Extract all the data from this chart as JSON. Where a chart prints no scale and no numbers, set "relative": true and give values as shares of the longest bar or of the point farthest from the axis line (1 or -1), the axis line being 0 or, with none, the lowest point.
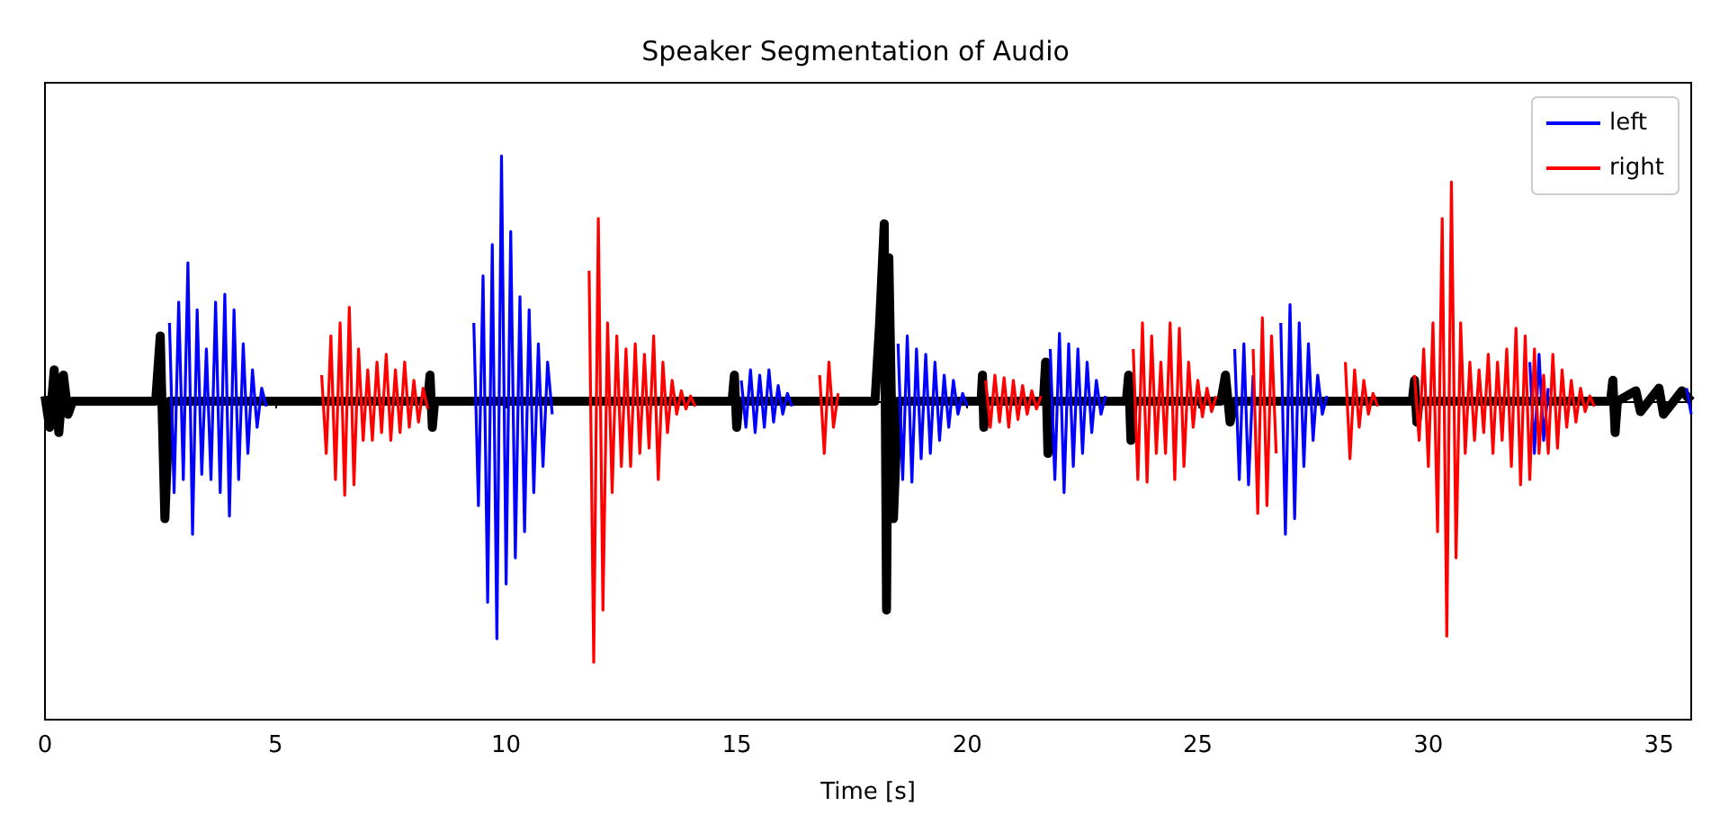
{
  "chart_data": {
    "type": "line",
    "title": "Speaker Segmentation of Audio",
    "xlabel": "Time [s]",
    "relative": true,
    "xlim": [
      0,
      35.7
    ],
    "xticks": [
      0,
      5,
      10,
      15,
      20,
      25,
      30,
      35
    ],
    "grid": false,
    "legend": "top right",
    "marker": "none",
    "line_style": "solid",
    "series": [
      {
        "color": "#000000",
        "x": [
          0,
          0.1,
          0.2,
          0.3,
          0.4,
          0.5,
          0.6,
          2.4,
          2.5,
          2.6,
          2.7,
          8.3,
          8.35,
          8.4,
          8.45,
          14.9,
          14.95,
          15.0,
          15.05,
          18.0,
          18.1,
          18.2,
          18.25,
          18.3,
          18.4,
          18.5,
          20.3,
          20.33,
          20.36,
          20.4,
          21.65,
          21.7,
          21.75,
          21.8,
          23.45,
          23.5,
          23.55,
          23.6,
          25.5,
          25.6,
          25.7,
          25.8,
          29.65,
          29.7,
          29.75,
          29.8,
          33.95,
          34.0,
          34.05,
          34.1,
          34.5,
          34.6,
          35.0,
          35.1,
          35.5,
          35.7
        ],
        "values": [
          0.02,
          -0.1,
          0.12,
          -0.12,
          0.1,
          -0.05,
          0,
          0,
          0.25,
          -0.45,
          0,
          0,
          0.1,
          -0.1,
          0,
          0,
          0.1,
          -0.1,
          0,
          0,
          0.3,
          0.68,
          -0.8,
          0.55,
          -0.45,
          0,
          0,
          0.1,
          -0.1,
          0,
          0,
          0.15,
          -0.2,
          0,
          0,
          0.1,
          -0.15,
          0,
          0,
          0.1,
          -0.08,
          0,
          0,
          0.08,
          -0.08,
          0,
          0,
          0.08,
          -0.12,
          0,
          0.04,
          -0.04,
          0.05,
          -0.05,
          0.04,
          0
        ]
      },
      {
        "name": "left",
        "color": "#0000ff",
        "x": [
          2.7,
          2.8,
          2.9,
          3.0,
          3.1,
          3.2,
          3.3,
          3.4,
          3.5,
          3.6,
          3.7,
          3.8,
          3.9,
          4.0,
          4.1,
          4.2,
          4.3,
          4.4,
          4.5,
          4.6,
          4.7,
          4.8,
          4.9,
          9.3,
          9.4,
          9.5,
          9.6,
          9.7,
          9.8,
          9.9,
          10.0,
          10.1,
          10.2,
          10.3,
          10.4,
          10.5,
          10.6,
          10.7,
          10.8,
          10.9,
          11.0,
          11.1,
          15.1,
          15.2,
          15.3,
          15.4,
          15.5,
          15.6,
          15.7,
          15.8,
          15.9,
          16.0,
          16.1,
          16.2,
          16.3,
          18.5,
          18.6,
          18.7,
          18.8,
          18.9,
          19.0,
          19.1,
          19.2,
          19.3,
          19.4,
          19.5,
          19.6,
          19.7,
          19.8,
          19.9,
          20.0,
          20.1,
          21.8,
          21.9,
          22.0,
          22.1,
          22.2,
          22.3,
          22.4,
          22.5,
          22.6,
          22.7,
          22.8,
          22.9,
          23.0,
          23.1,
          25.8,
          25.9,
          26.0,
          26.1,
          26.2,
          26.3,
          26.8,
          26.9,
          27.0,
          27.1,
          27.2,
          27.3,
          27.4,
          27.5,
          27.6,
          27.7,
          27.8,
          27.9,
          32.2,
          32.3,
          32.4,
          32.5,
          32.6,
          32.7,
          35.6,
          35.7
        ],
        "values": [
          0.3,
          -0.35,
          0.38,
          -0.3,
          0.53,
          -0.51,
          0.35,
          -0.28,
          0.2,
          -0.3,
          0.38,
          -0.35,
          0.41,
          -0.44,
          0.35,
          -0.3,
          0.22,
          -0.2,
          0.12,
          -0.1,
          0.05,
          -0.02,
          null,
          0.3,
          -0.4,
          0.48,
          -0.77,
          0.6,
          -0.91,
          0.94,
          -0.7,
          0.65,
          -0.6,
          0.4,
          -0.5,
          0.35,
          -0.35,
          0.22,
          -0.25,
          0.15,
          -0.05,
          null,
          0.08,
          -0.1,
          0.12,
          -0.12,
          0.1,
          -0.1,
          0.12,
          -0.08,
          0.06,
          -0.05,
          0.03,
          -0.02,
          null,
          0.22,
          -0.3,
          0.25,
          -0.31,
          0.2,
          -0.22,
          0.18,
          -0.2,
          0.15,
          -0.15,
          0.1,
          -0.1,
          0.08,
          -0.05,
          0.03,
          -0.02,
          null,
          0.2,
          -0.3,
          0.26,
          -0.35,
          0.22,
          -0.25,
          0.2,
          -0.2,
          0.15,
          -0.12,
          0.08,
          -0.05,
          0.02,
          null,
          0.2,
          -0.3,
          0.22,
          -0.32,
          0.1,
          null,
          0.3,
          -0.51,
          0.37,
          -0.45,
          0.3,
          -0.25,
          0.22,
          -0.15,
          0.1,
          -0.05,
          0.02,
          null,
          0.15,
          -0.2,
          0.18,
          -0.15,
          0.05,
          null,
          0.05,
          -0.05
        ]
      },
      {
        "name": "right",
        "color": "#ff0000",
        "x": [
          6.0,
          6.1,
          6.2,
          6.3,
          6.4,
          6.5,
          6.6,
          6.7,
          6.8,
          6.9,
          7.0,
          7.1,
          7.2,
          7.3,
          7.4,
          7.5,
          7.6,
          7.7,
          7.8,
          7.9,
          8.0,
          8.1,
          8.2,
          8.3,
          8.4,
          11.8,
          11.9,
          12.0,
          12.1,
          12.2,
          12.3,
          12.4,
          12.5,
          12.6,
          12.7,
          12.8,
          12.9,
          13.0,
          13.1,
          13.2,
          13.3,
          13.4,
          13.5,
          13.6,
          13.7,
          13.8,
          13.9,
          14.0,
          14.1,
          14.2,
          16.8,
          16.9,
          17.0,
          17.1,
          17.2,
          17.3,
          20.4,
          20.5,
          20.6,
          20.7,
          20.8,
          20.9,
          21.0,
          21.1,
          21.2,
          21.3,
          21.4,
          21.5,
          21.6,
          21.7,
          23.6,
          23.7,
          23.8,
          23.9,
          24.0,
          24.1,
          24.2,
          24.3,
          24.4,
          24.5,
          24.6,
          24.7,
          24.8,
          24.9,
          25.0,
          25.1,
          25.2,
          25.3,
          25.4,
          25.5,
          26.2,
          26.3,
          26.4,
          26.5,
          26.6,
          26.7,
          26.75,
          28.2,
          28.3,
          28.4,
          28.5,
          28.6,
          28.7,
          28.8,
          28.9,
          29.0,
          29.7,
          29.8,
          29.9,
          30.0,
          30.1,
          30.2,
          30.3,
          30.4,
          30.5,
          30.6,
          30.7,
          30.8,
          30.9,
          31.0,
          31.1,
          31.2,
          31.3,
          31.4,
          31.5,
          31.6,
          31.7,
          31.8,
          31.9,
          32.0,
          32.1,
          32.2,
          32.3,
          32.4,
          32.5,
          32.6,
          32.7,
          32.8,
          32.9,
          33.0,
          33.1,
          33.2,
          33.3,
          33.4,
          33.5,
          33.6
        ],
        "values": [
          0.1,
          -0.2,
          0.25,
          -0.3,
          0.3,
          -0.36,
          0.36,
          -0.32,
          0.2,
          -0.15,
          0.12,
          -0.15,
          0.15,
          -0.12,
          0.18,
          -0.15,
          0.12,
          -0.12,
          0.15,
          -0.1,
          0.08,
          -0.08,
          0.05,
          -0.03,
          null,
          0.5,
          -1.0,
          0.7,
          -0.8,
          0.3,
          -0.35,
          0.25,
          -0.25,
          0.2,
          -0.25,
          0.22,
          -0.2,
          0.18,
          -0.18,
          0.25,
          -0.3,
          0.15,
          -0.12,
          0.08,
          -0.05,
          0.04,
          -0.03,
          0.02,
          -0.02,
          null,
          0.1,
          -0.2,
          0.15,
          -0.1,
          0.03,
          null,
          0.08,
          -0.1,
          0.1,
          -0.08,
          0.09,
          -0.1,
          0.08,
          -0.07,
          0.06,
          -0.05,
          0.04,
          -0.03,
          0.02,
          null,
          0.2,
          -0.3,
          0.3,
          -0.31,
          0.25,
          -0.2,
          0.15,
          -0.2,
          0.3,
          -0.3,
          0.28,
          -0.25,
          0.15,
          -0.1,
          0.08,
          -0.06,
          0.05,
          -0.04,
          0.02,
          null,
          0.2,
          -0.43,
          0.32,
          -0.4,
          0.25,
          -0.2,
          null,
          0.15,
          -0.22,
          0.12,
          -0.1,
          0.08,
          -0.05,
          0.03,
          -0.02,
          null,
          0.1,
          -0.15,
          0.2,
          -0.25,
          0.3,
          -0.5,
          0.7,
          -0.9,
          0.84,
          -0.6,
          0.3,
          -0.2,
          0.15,
          -0.15,
          0.12,
          -0.12,
          0.18,
          -0.2,
          0.15,
          -0.15,
          0.2,
          -0.25,
          0.28,
          -0.32,
          0.25,
          -0.3,
          0.2,
          -0.2,
          0.1,
          -0.2,
          0.18,
          -0.18,
          0.12,
          -0.1,
          0.08,
          -0.08,
          0.05,
          -0.04,
          0.02,
          -0.02
        ]
      }
    ]
  }
}
